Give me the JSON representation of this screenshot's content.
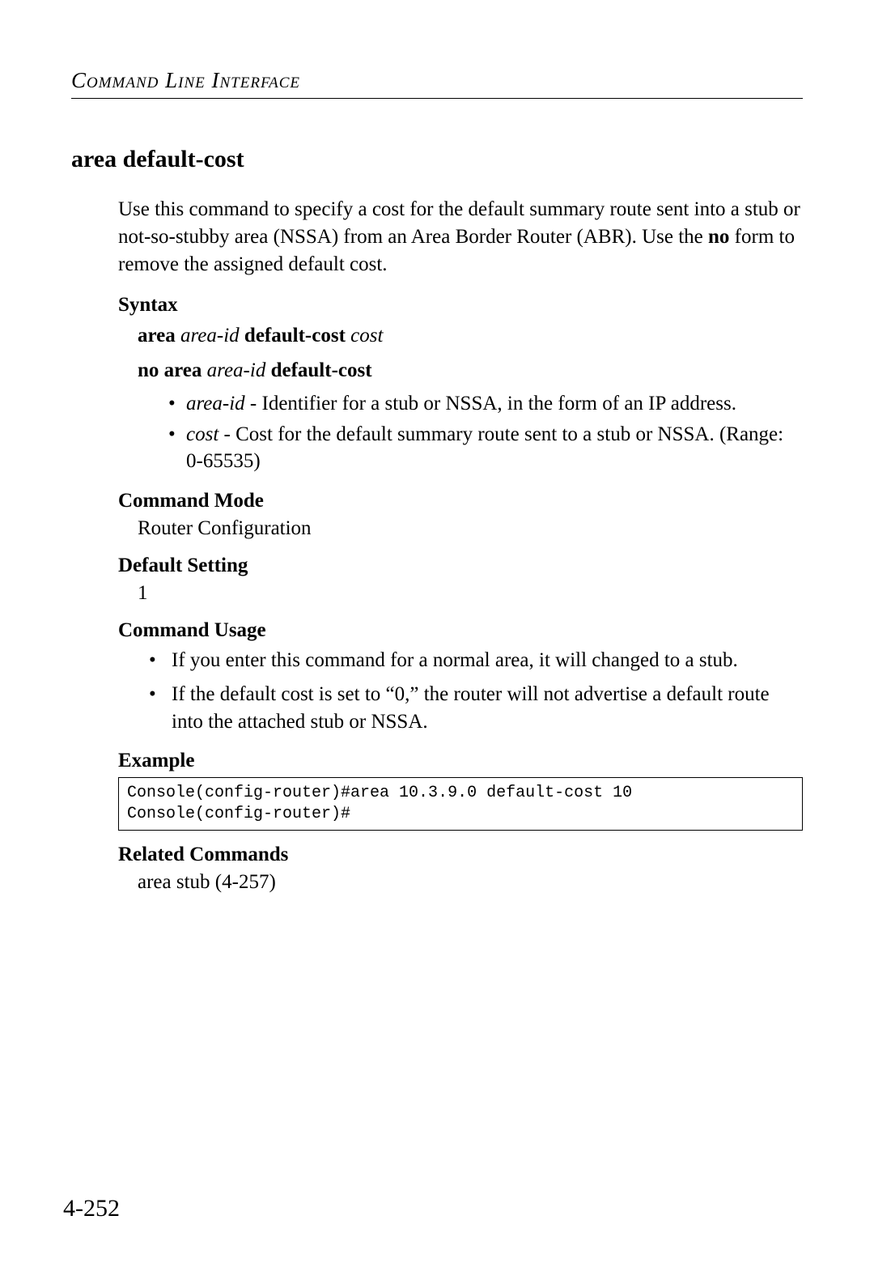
{
  "header": {
    "title": "Command Line Interface"
  },
  "section": {
    "title": "area default-cost",
    "intro_part1": "Use this command to specify a cost for the default summary route sent into a stub or not-so-stubby area (NSSA) from an Area Border Router (ABR). Use the ",
    "intro_bold": "no",
    "intro_part2": " form to remove the assigned default cost."
  },
  "syntax": {
    "heading": "Syntax",
    "line1_b1": "area",
    "line1_i1": "area-id",
    "line1_b2": "default-cost",
    "line1_i2": "cost",
    "line2_b1": "no area",
    "line2_i1": "area-id",
    "line2_b2": "default-cost",
    "params": [
      {
        "name": "area-id",
        "desc": " - Identifier for a stub or NSSA, in the form of an IP address."
      },
      {
        "name": "cost",
        "desc": " - Cost for the default summary route sent to a stub or NSSA. (Range: 0-65535)"
      }
    ]
  },
  "command_mode": {
    "heading": "Command Mode",
    "value": "Router Configuration"
  },
  "default_setting": {
    "heading": "Default Setting",
    "value": "1"
  },
  "command_usage": {
    "heading": "Command Usage",
    "items": [
      "If you enter this command for a normal area, it will changed to a stub.",
      "If the default cost is set to “0,” the router will not advertise a default route into the attached stub or NSSA."
    ]
  },
  "example": {
    "heading": "Example",
    "code": "Console(config-router)#area 10.3.9.0 default-cost 10\nConsole(config-router)#"
  },
  "related": {
    "heading": "Related Commands",
    "text": "area stub (4-257)"
  },
  "page_number": "4-252"
}
